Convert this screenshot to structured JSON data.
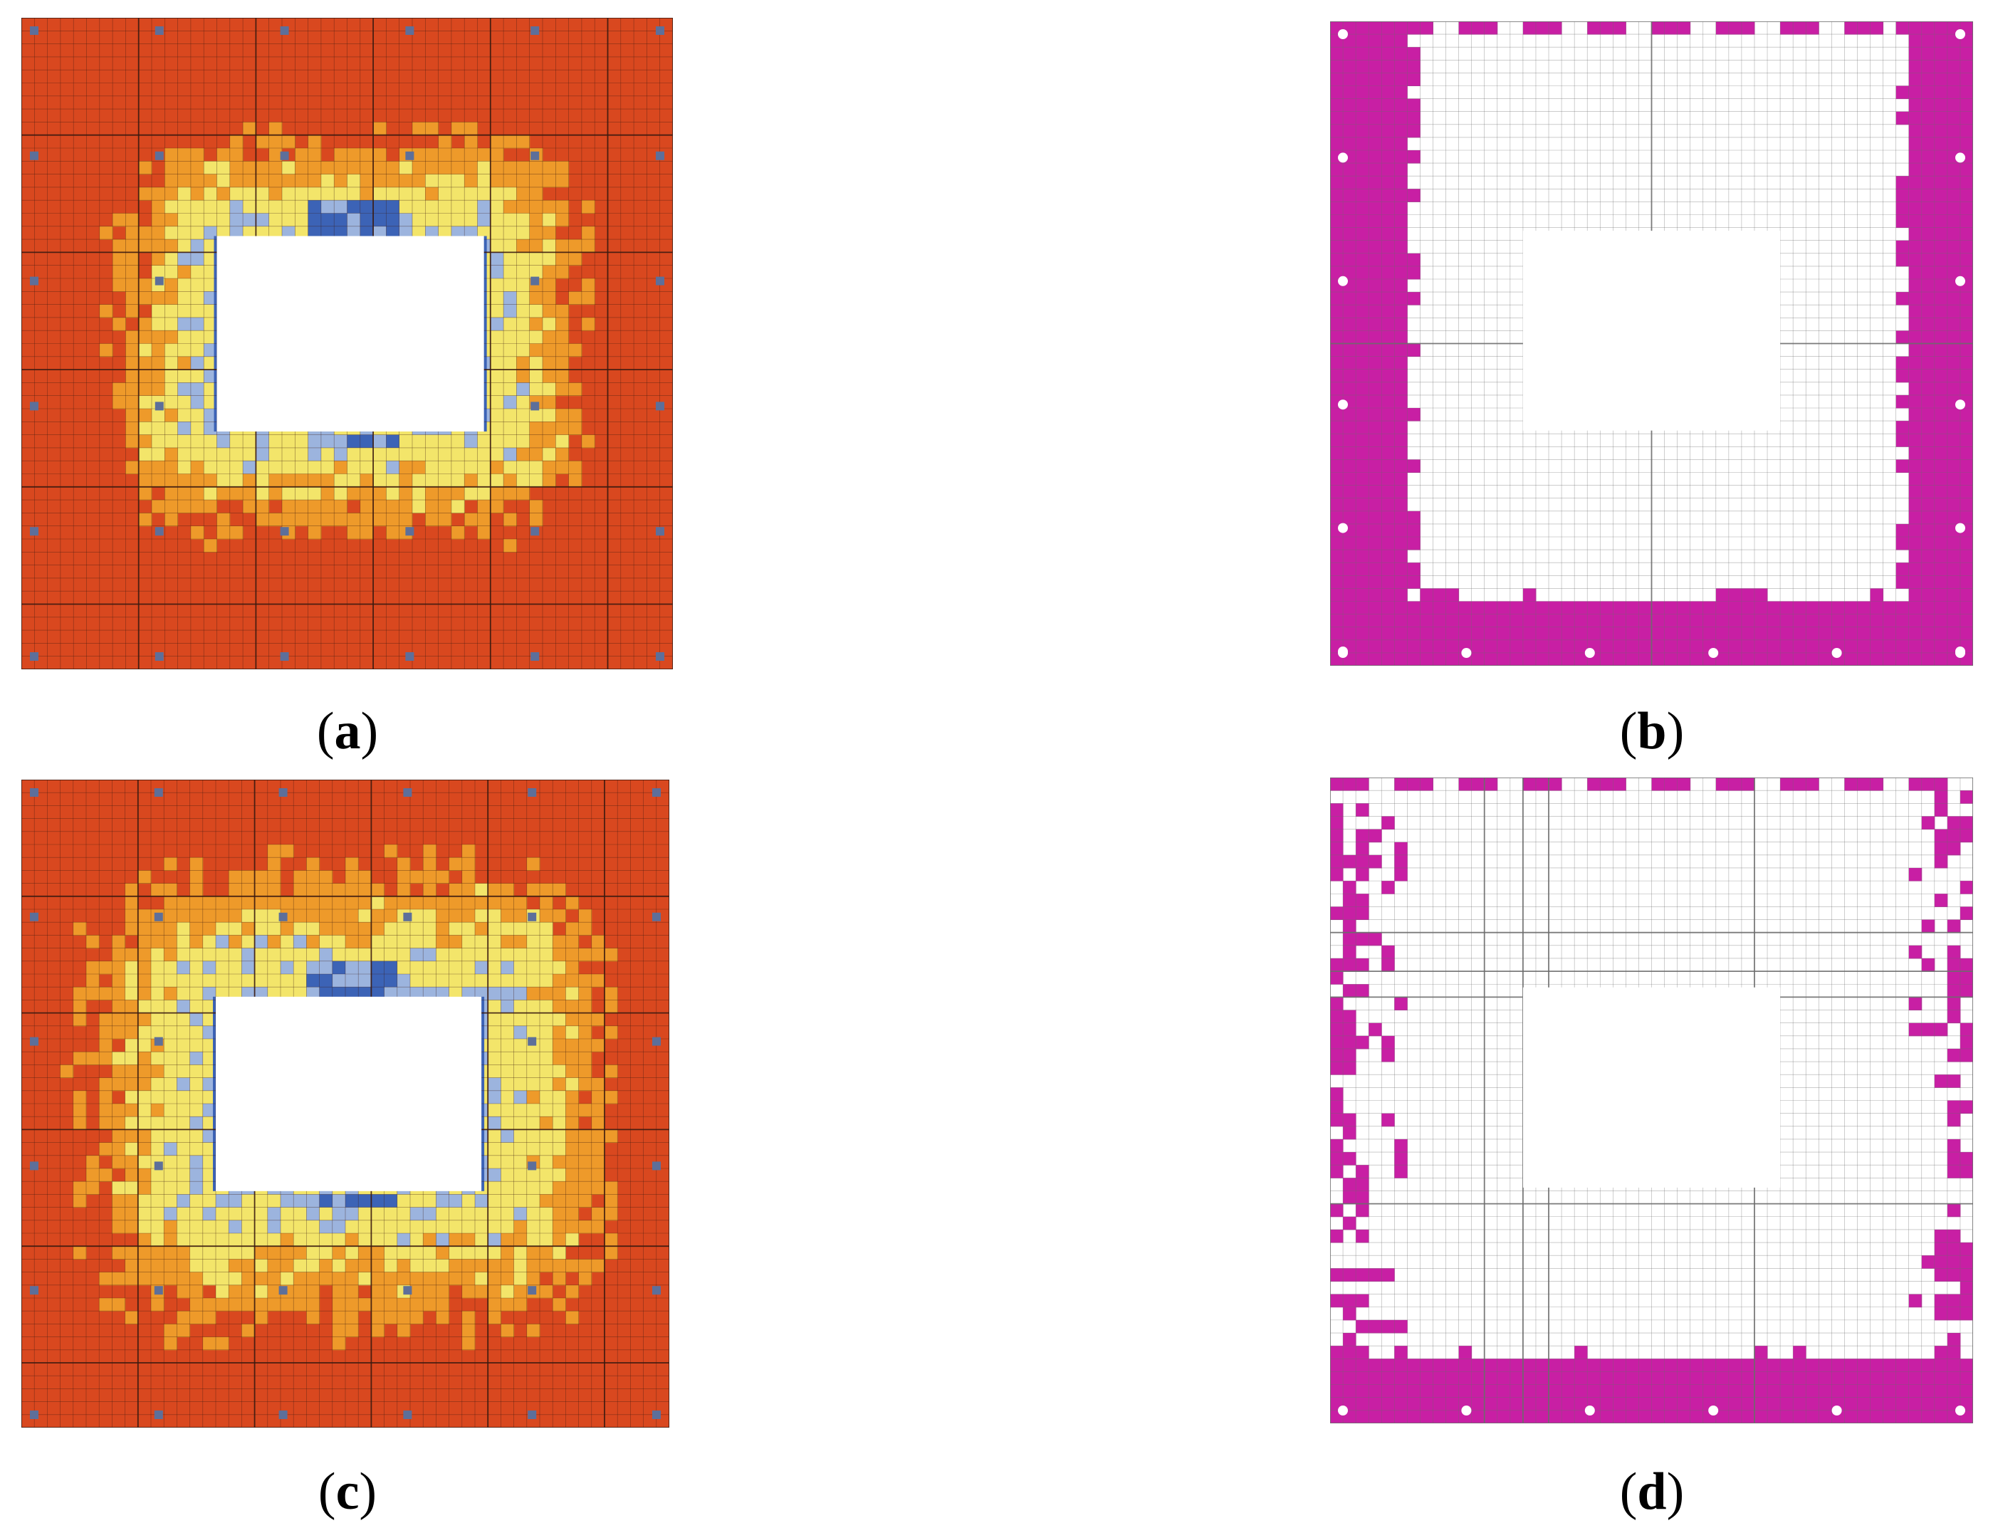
{
  "figure": {
    "panels": [
      {
        "id": "a",
        "label": "a",
        "kind": "stress-contour"
      },
      {
        "id": "b",
        "label": "b",
        "kind": "plastic-zone"
      },
      {
        "id": "c",
        "label": "c",
        "kind": "stress-contour"
      },
      {
        "id": "d",
        "label": "d",
        "kind": "plastic-zone"
      }
    ],
    "colors": {
      "contour_base": "#d9481f",
      "contour_mid": "#ee9a2a",
      "contour_yellow": "#f3e56a",
      "contour_light_blue": "#9cb4de",
      "contour_dark_blue": "#3c63b6",
      "plastic_zone": "#c81fa4",
      "grid_line": "#6b6b6b",
      "opening": "#ffffff"
    }
  }
}
